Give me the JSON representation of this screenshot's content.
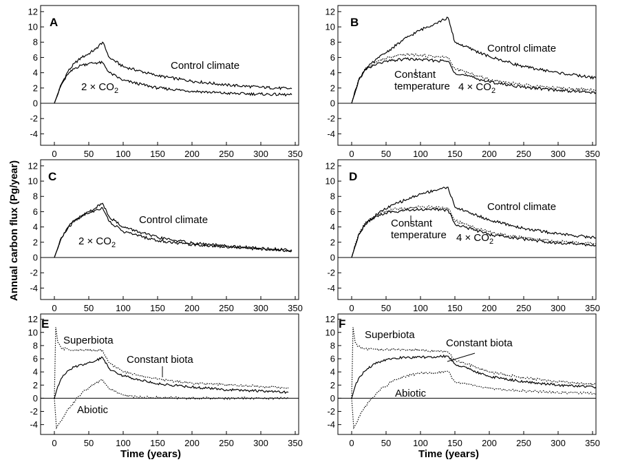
{
  "figure": {
    "ylabel": "Annual carbon flux (Pg/year)",
    "xlabel": "Time (years)"
  },
  "chart_data": [
    {
      "panel": "A",
      "type": "line",
      "xlim": [
        -20,
        355
      ],
      "ylim": [
        -5.5,
        12.8
      ],
      "xticks": [
        0,
        50,
        100,
        150,
        200,
        250,
        300,
        350
      ],
      "yticks": [
        12,
        10,
        8,
        6,
        4,
        2,
        0,
        -2,
        -4
      ],
      "series": [
        {
          "name": "Control climate",
          "style": "solid",
          "x": [
            0,
            10,
            20,
            30,
            40,
            50,
            60,
            70,
            80,
            100,
            150,
            200,
            250,
            300,
            345
          ],
          "y": [
            0,
            2.5,
            4.2,
            5.3,
            6.0,
            6.5,
            7.1,
            8.0,
            6.0,
            4.8,
            3.6,
            2.9,
            2.4,
            2.1,
            1.9
          ]
        },
        {
          "name": "2 × CO2",
          "style": "solid",
          "x": [
            0,
            10,
            20,
            30,
            40,
            50,
            60,
            70,
            80,
            100,
            150,
            200,
            250,
            300,
            345
          ],
          "y": [
            0,
            2.4,
            3.8,
            4.6,
            5.0,
            5.2,
            5.3,
            5.3,
            4.0,
            3.0,
            2.0,
            1.6,
            1.3,
            1.2,
            1.1
          ]
        }
      ],
      "annotations": [
        {
          "text": "Control climate"
        },
        {
          "text": "2 × CO",
          "sub": "2"
        }
      ]
    },
    {
      "panel": "B",
      "type": "line",
      "xlim": [
        -20,
        355
      ],
      "ylim": [
        -5.5,
        12.8
      ],
      "xticks": [
        0,
        50,
        100,
        150,
        200,
        250,
        300,
        350
      ],
      "yticks": [
        12,
        10,
        8,
        6,
        4,
        2,
        0,
        -2,
        -4
      ],
      "series": [
        {
          "name": "Control climate",
          "style": "solid",
          "x": [
            0,
            10,
            20,
            40,
            60,
            80,
            100,
            120,
            140,
            150,
            200,
            250,
            300,
            355
          ],
          "y": [
            0,
            3.0,
            4.5,
            6.0,
            7.3,
            8.6,
            9.6,
            10.4,
            11.2,
            8.0,
            6.1,
            4.8,
            4.0,
            3.3
          ]
        },
        {
          "name": "Constant temperature",
          "style": "dotted",
          "x": [
            0,
            10,
            20,
            40,
            60,
            80,
            100,
            120,
            140,
            150,
            200,
            250,
            300,
            355
          ],
          "y": [
            0,
            3.1,
            4.5,
            5.6,
            6.1,
            6.4,
            6.3,
            6.1,
            6.0,
            4.5,
            3.1,
            2.4,
            2.0,
            1.7
          ]
        },
        {
          "name": "4 × CO2",
          "style": "solid",
          "x": [
            0,
            10,
            20,
            40,
            60,
            80,
            100,
            120,
            140,
            150,
            200,
            250,
            300,
            355
          ],
          "y": [
            0,
            3.0,
            4.4,
            5.3,
            5.6,
            5.8,
            5.7,
            5.6,
            5.5,
            4.0,
            2.8,
            2.1,
            1.7,
            1.4
          ]
        }
      ],
      "annotations": [
        {
          "text": "Control climate"
        },
        {
          "text": "Constant"
        },
        {
          "text": "temperature"
        },
        {
          "text": "4 × CO",
          "sub": "2"
        }
      ]
    },
    {
      "panel": "C",
      "type": "line",
      "xlim": [
        -20,
        355
      ],
      "ylim": [
        -5.5,
        12.8
      ],
      "xticks": [
        0,
        50,
        100,
        150,
        200,
        250,
        300,
        350
      ],
      "yticks": [
        12,
        10,
        8,
        6,
        4,
        2,
        0,
        -2,
        -4
      ],
      "series": [
        {
          "name": "Control climate",
          "style": "solid",
          "x": [
            0,
            10,
            20,
            30,
            40,
            50,
            60,
            70,
            80,
            100,
            150,
            200,
            250,
            300,
            345
          ],
          "y": [
            0,
            2.6,
            4.0,
            4.9,
            5.5,
            6.0,
            6.5,
            7.1,
            5.3,
            4.0,
            2.6,
            1.9,
            1.5,
            1.2,
            1.0
          ]
        },
        {
          "name": "2 × CO2",
          "style": "solid",
          "x": [
            0,
            10,
            20,
            30,
            40,
            50,
            60,
            70,
            80,
            100,
            150,
            200,
            250,
            300,
            345
          ],
          "y": [
            0,
            2.5,
            3.9,
            4.8,
            5.4,
            5.8,
            6.2,
            6.5,
            4.7,
            3.4,
            2.2,
            1.7,
            1.4,
            1.1,
            0.9
          ]
        }
      ],
      "annotations": [
        {
          "text": "Control climate"
        },
        {
          "text": "2 × CO",
          "sub": "2"
        }
      ]
    },
    {
      "panel": "D",
      "type": "line",
      "xlim": [
        -20,
        355
      ],
      "ylim": [
        -5.5,
        12.8
      ],
      "xticks": [
        0,
        50,
        100,
        150,
        200,
        250,
        300,
        350
      ],
      "yticks": [
        12,
        10,
        8,
        6,
        4,
        2,
        0,
        -2,
        -4
      ],
      "series": [
        {
          "name": "Control climate",
          "style": "solid",
          "x": [
            0,
            10,
            20,
            40,
            60,
            80,
            100,
            120,
            140,
            150,
            200,
            250,
            300,
            355
          ],
          "y": [
            0,
            3.0,
            4.4,
            5.9,
            6.9,
            7.6,
            8.3,
            8.8,
            9.2,
            6.6,
            4.9,
            3.8,
            3.1,
            2.6
          ]
        },
        {
          "name": "Constant temperature",
          "style": "dotted",
          "x": [
            0,
            10,
            20,
            40,
            60,
            80,
            100,
            120,
            140,
            150,
            200,
            250,
            300,
            355
          ],
          "y": [
            0,
            3.1,
            4.6,
            5.8,
            6.3,
            6.5,
            6.6,
            6.6,
            6.5,
            4.8,
            3.3,
            2.6,
            2.1,
            1.8
          ]
        },
        {
          "name": "4 × CO2",
          "style": "solid",
          "x": [
            0,
            10,
            20,
            40,
            60,
            80,
            100,
            120,
            140,
            150,
            200,
            250,
            300,
            355
          ],
          "y": [
            0,
            3.0,
            4.4,
            5.6,
            6.0,
            6.2,
            6.3,
            6.3,
            6.2,
            4.4,
            3.0,
            2.4,
            1.9,
            1.6
          ]
        }
      ],
      "annotations": [
        {
          "text": "Control climate"
        },
        {
          "text": "Constant"
        },
        {
          "text": "temperature"
        },
        {
          "text": "4 × CO",
          "sub": "2"
        }
      ]
    },
    {
      "panel": "E",
      "type": "line",
      "xlim": [
        -20,
        355
      ],
      "ylim": [
        -5.5,
        12.8
      ],
      "xticks": [
        0,
        50,
        100,
        150,
        200,
        250,
        300,
        350
      ],
      "yticks": [
        12,
        10,
        8,
        6,
        4,
        2,
        0,
        -2,
        -4
      ],
      "series": [
        {
          "name": "Superbiota",
          "style": "dotted",
          "x": [
            0,
            2,
            5,
            10,
            20,
            40,
            60,
            70,
            80,
            100,
            150,
            200,
            250,
            300,
            340
          ],
          "y": [
            0,
            10.8,
            8.5,
            7.6,
            7.4,
            7.3,
            7.3,
            7.3,
            5.3,
            4.0,
            2.9,
            2.3,
            2.0,
            1.8,
            1.6
          ]
        },
        {
          "name": "Constant biota",
          "style": "solid",
          "x": [
            0,
            5,
            10,
            20,
            30,
            40,
            50,
            60,
            70,
            80,
            100,
            150,
            200,
            250,
            300,
            340
          ],
          "y": [
            0,
            1.8,
            3.0,
            4.2,
            4.8,
            5.1,
            5.4,
            5.7,
            6.2,
            4.5,
            3.4,
            2.2,
            1.7,
            1.3,
            1.1,
            0.9
          ]
        },
        {
          "name": "Abiotic",
          "style": "dotted",
          "x": [
            0,
            3,
            6,
            15,
            25,
            40,
            55,
            70,
            80,
            100,
            120,
            150,
            200,
            250,
            300,
            340
          ],
          "y": [
            0,
            -4.5,
            -4.0,
            -2.5,
            -1.0,
            0.8,
            2.0,
            2.8,
            1.4,
            0.5,
            0.2,
            0.1,
            0.0,
            0.0,
            0.0,
            0.0
          ]
        }
      ],
      "annotations": [
        {
          "text": "Superbiota"
        },
        {
          "text": "Constant biota"
        },
        {
          "text": "Abiotic"
        }
      ]
    },
    {
      "panel": "F",
      "type": "line",
      "xlim": [
        -20,
        355
      ],
      "ylim": [
        -5.5,
        12.8
      ],
      "xticks": [
        0,
        50,
        100,
        150,
        200,
        250,
        300,
        350
      ],
      "yticks": [
        12,
        10,
        8,
        6,
        4,
        2,
        0,
        -2,
        -4
      ],
      "series": [
        {
          "name": "Superbiota",
          "style": "dotted",
          "x": [
            0,
            2,
            5,
            10,
            20,
            40,
            60,
            80,
            100,
            120,
            140,
            150,
            200,
            250,
            300,
            355
          ],
          "y": [
            0,
            10.8,
            8.5,
            7.8,
            7.5,
            7.4,
            7.4,
            7.4,
            7.3,
            7.2,
            7.0,
            5.8,
            4.0,
            3.1,
            2.5,
            2.1
          ]
        },
        {
          "name": "Constant biota",
          "style": "solid",
          "x": [
            0,
            5,
            10,
            20,
            30,
            40,
            50,
            60,
            80,
            100,
            120,
            140,
            150,
            200,
            250,
            300,
            355
          ],
          "y": [
            0,
            1.8,
            3.0,
            4.2,
            5.0,
            5.5,
            5.9,
            6.1,
            6.2,
            6.2,
            6.3,
            6.4,
            5.2,
            3.3,
            2.5,
            2.0,
            1.7
          ]
        },
        {
          "name": "Abiotic",
          "style": "dotted",
          "x": [
            0,
            3,
            6,
            15,
            25,
            40,
            60,
            80,
            100,
            120,
            140,
            150,
            200,
            250,
            300,
            355
          ],
          "y": [
            0,
            -4.5,
            -4.0,
            -2.0,
            -0.5,
            1.2,
            2.6,
            3.4,
            3.8,
            3.9,
            4.1,
            2.5,
            1.5,
            1.1,
            0.9,
            0.7
          ]
        }
      ],
      "annotations": [
        {
          "text": "Superbiota"
        },
        {
          "text": "Constant biota"
        },
        {
          "text": "Abiotic"
        }
      ]
    }
  ]
}
